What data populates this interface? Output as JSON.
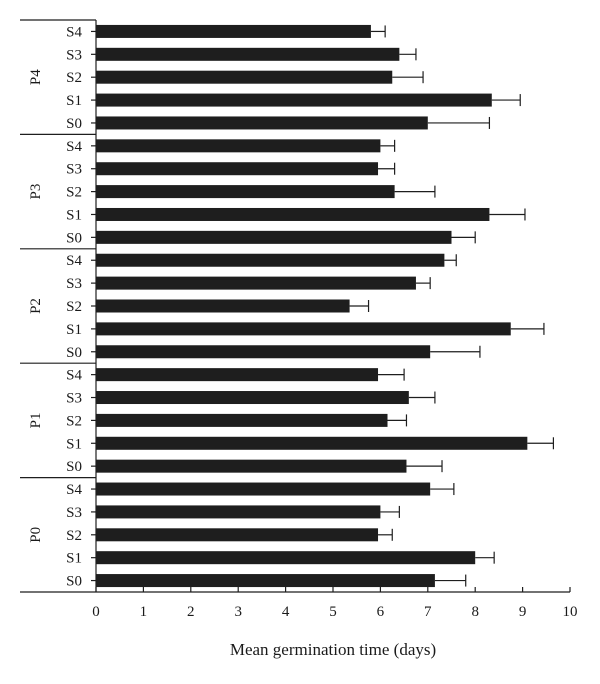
{
  "chart_data": {
    "type": "bar",
    "orientation": "horizontal",
    "xlabel": "Mean germination time (days)",
    "xlim": [
      0,
      10
    ],
    "xticks": [
      "0",
      "1",
      "2",
      "3",
      "4",
      "5",
      "6",
      "7",
      "8",
      "9",
      "10"
    ],
    "groups": [
      {
        "name": "P4",
        "bars": [
          {
            "label": "S4",
            "value": 5.8,
            "error": 0.3
          },
          {
            "label": "S3",
            "value": 6.4,
            "error": 0.35
          },
          {
            "label": "S2",
            "value": 6.25,
            "error": 0.65
          },
          {
            "label": "S1",
            "value": 8.35,
            "error": 0.6
          },
          {
            "label": "S0",
            "value": 7.0,
            "error": 1.3
          }
        ]
      },
      {
        "name": "P3",
        "bars": [
          {
            "label": "S4",
            "value": 6.0,
            "error": 0.3
          },
          {
            "label": "S3",
            "value": 5.95,
            "error": 0.35
          },
          {
            "label": "S2",
            "value": 6.3,
            "error": 0.85
          },
          {
            "label": "S1",
            "value": 8.3,
            "error": 0.75
          },
          {
            "label": "S0",
            "value": 7.5,
            "error": 0.5
          }
        ]
      },
      {
        "name": "P2",
        "bars": [
          {
            "label": "S4",
            "value": 7.35,
            "error": 0.25
          },
          {
            "label": "S3",
            "value": 6.75,
            "error": 0.3
          },
          {
            "label": "S2",
            "value": 5.35,
            "error": 0.4
          },
          {
            "label": "S1",
            "value": 8.75,
            "error": 0.7
          },
          {
            "label": "S0",
            "value": 7.05,
            "error": 1.05
          }
        ]
      },
      {
        "name": "P1",
        "bars": [
          {
            "label": "S4",
            "value": 5.95,
            "error": 0.55
          },
          {
            "label": "S3",
            "value": 6.6,
            "error": 0.55
          },
          {
            "label": "S2",
            "value": 6.15,
            "error": 0.4
          },
          {
            "label": "S1",
            "value": 9.1,
            "error": 0.55
          },
          {
            "label": "S0",
            "value": 6.55,
            "error": 0.75
          }
        ]
      },
      {
        "name": "P0",
        "bars": [
          {
            "label": "S4",
            "value": 7.05,
            "error": 0.5
          },
          {
            "label": "S3",
            "value": 6.0,
            "error": 0.4
          },
          {
            "label": "S2",
            "value": 5.95,
            "error": 0.3
          },
          {
            "label": "S1",
            "value": 8.0,
            "error": 0.4
          },
          {
            "label": "S0",
            "value": 7.15,
            "error": 0.65
          }
        ]
      }
    ]
  }
}
